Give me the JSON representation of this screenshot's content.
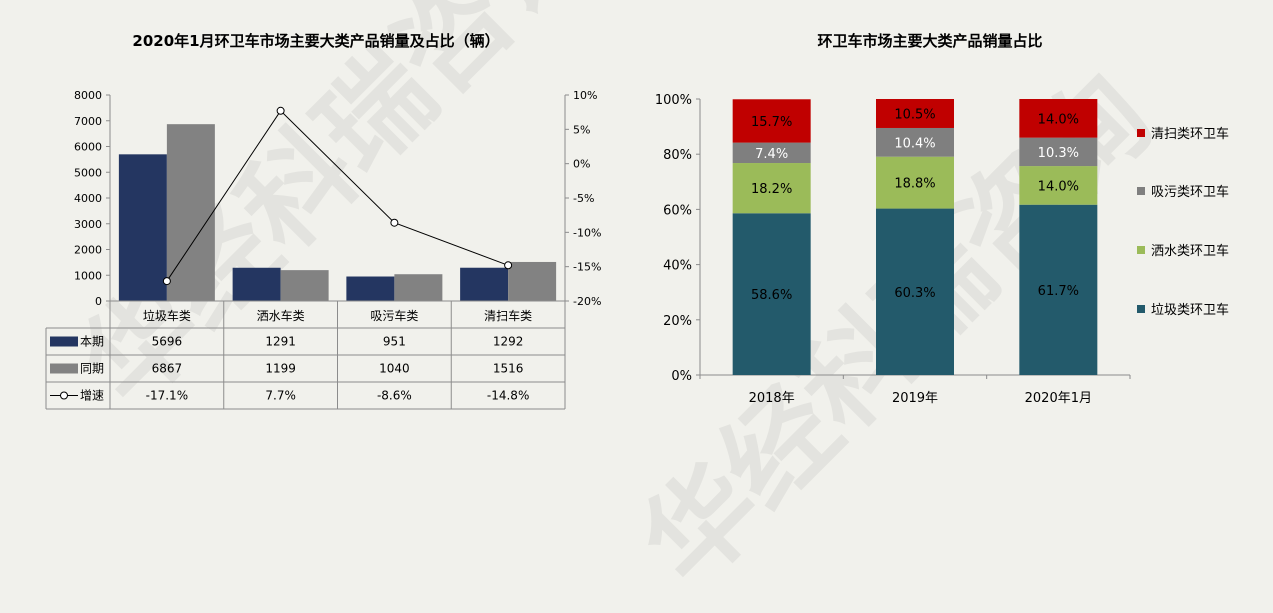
{
  "left": {
    "title": "2020年1月环卫车市场主要大类产品销量及占比（辆）"
  },
  "right": {
    "title": "环卫车市场主要大类产品销量占比"
  },
  "colors": {
    "current": "#243661",
    "prior": "#828282",
    "garbage": "#235a6b",
    "water": "#9bbb59",
    "sewage": "#7f7f7f",
    "sweep": "#c00000",
    "line": "#000000"
  },
  "chart_data": [
    {
      "type": "bar",
      "subtype": "grouped bar + line on secondary axis, with data table",
      "title": "2020年1月环卫车市场主要大类产品销量及占比（辆）",
      "categories": [
        "垃圾车类",
        "洒水车类",
        "吸污车类",
        "清扫车类"
      ],
      "series": [
        {
          "name": "本期",
          "values": [
            5696,
            1291,
            951,
            1292
          ]
        },
        {
          "name": "同期",
          "values": [
            6867,
            1199,
            1040,
            1516
          ]
        }
      ],
      "line_series": {
        "name": "增速",
        "values": [
          -17.1,
          7.7,
          -8.6,
          -14.8
        ],
        "labels": [
          "-17.1%",
          "7.7%",
          "-8.6%",
          "-14.8%"
        ]
      },
      "table_rows": [
        {
          "name": "本期",
          "cells": [
            "5696",
            "1291",
            "951",
            "1292"
          ]
        },
        {
          "name": "同期",
          "cells": [
            "6867",
            "1199",
            "1040",
            "1516"
          ]
        },
        {
          "name": "增速",
          "cells": [
            "-17.1%",
            "7.7%",
            "-8.6%",
            "-14.8%"
          ]
        }
      ],
      "ylim": [
        0,
        8000
      ],
      "yticks": [
        "0",
        "1000",
        "2000",
        "3000",
        "4000",
        "5000",
        "6000",
        "7000",
        "8000"
      ],
      "y2lim": [
        -20,
        10
      ],
      "y2ticks": [
        "-20%",
        "-15%",
        "-10%",
        "-5%",
        "0%",
        "5%",
        "10%"
      ],
      "legend": "table"
    },
    {
      "type": "bar",
      "subtype": "100% stacked bar",
      "title": "环卫车市场主要大类产品销量占比",
      "categories": [
        "2018年",
        "2019年",
        "2020年1月"
      ],
      "series": [
        {
          "name": "垃圾类环卫车",
          "values": [
            58.6,
            60.3,
            61.7
          ],
          "labels": [
            "58.6%",
            "60.3%",
            "61.7%"
          ]
        },
        {
          "name": "洒水类环卫车",
          "values": [
            18.2,
            18.8,
            14.0
          ],
          "labels": [
            "18.2%",
            "18.8%",
            "14.0%"
          ]
        },
        {
          "name": "吸污类环卫车",
          "values": [
            7.4,
            10.4,
            10.3
          ],
          "labels": [
            "7.4%",
            "10.4%",
            "10.3%"
          ]
        },
        {
          "name": "清扫类环卫车",
          "values": [
            15.7,
            10.5,
            14.0
          ],
          "labels": [
            "15.7%",
            "10.5%",
            "14.0%"
          ]
        }
      ],
      "ylim": [
        0,
        100
      ],
      "yticks": [
        "0%",
        "20%",
        "40%",
        "60%",
        "80%",
        "100%"
      ],
      "legend": "right"
    }
  ]
}
